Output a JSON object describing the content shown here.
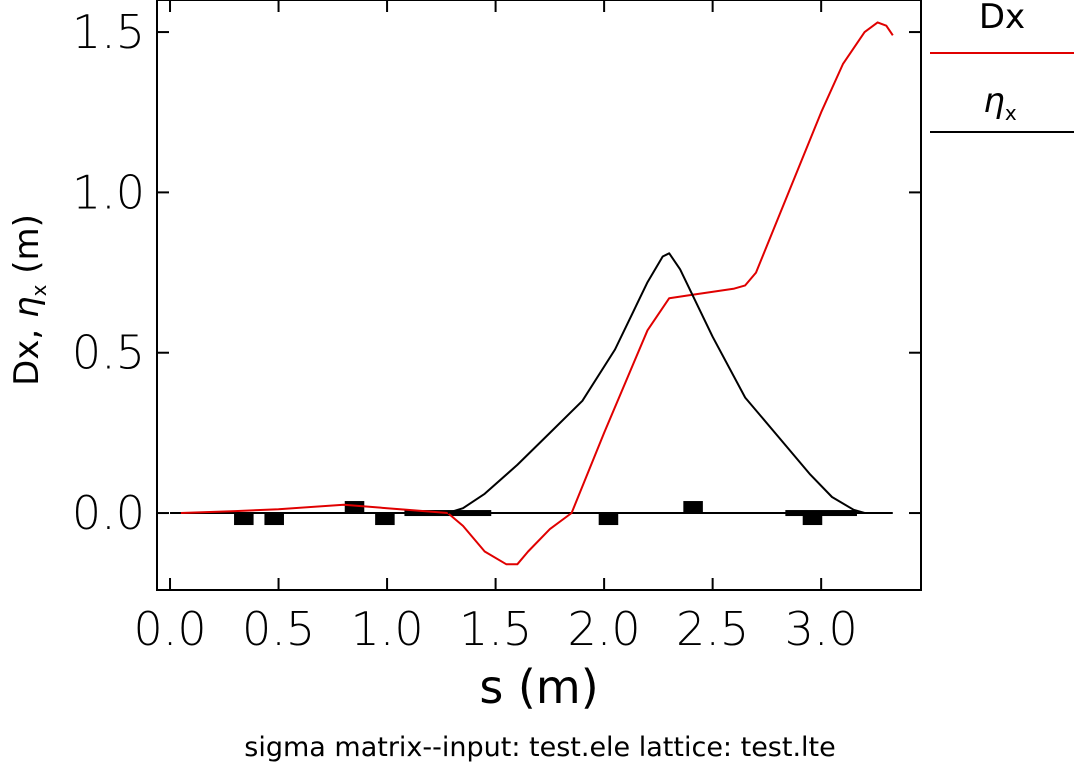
{
  "chart_data": {
    "type": "line",
    "xlabel": "s  (m)",
    "ylabel_prefix": "Dx,  ",
    "ylabel_eta": "η",
    "ylabel_sub": "x",
    "ylabel_suffix": "  (m)",
    "xlim": [
      -0.06,
      3.46
    ],
    "ylim": [
      -0.24,
      1.6
    ],
    "xticks": [
      0.0,
      0.5,
      1.0,
      1.5,
      2.0,
      2.5,
      3.0
    ],
    "xtick_labels": [
      "0.0",
      "0.5",
      "1.0",
      "1.5",
      "2.0",
      "2.5",
      "3.0"
    ],
    "yticks": [
      0.0,
      0.5,
      1.0,
      1.5
    ],
    "ytick_labels": [
      "0.0",
      "0.5",
      "1.0",
      "1.5"
    ],
    "legend_placement": "right",
    "series": [
      {
        "name": "Dx",
        "color": "#e00000",
        "x": [
          0.05,
          0.3,
          0.5,
          0.8,
          1.0,
          1.28,
          1.35,
          1.45,
          1.55,
          1.6,
          1.65,
          1.75,
          1.85,
          2.0,
          2.2,
          2.3,
          2.4,
          2.6,
          2.65,
          2.7,
          2.85,
          3.0,
          3.1,
          3.2,
          3.26,
          3.3,
          3.33
        ],
        "y": [
          0.0,
          0.006,
          0.012,
          0.026,
          0.015,
          0.0,
          -0.04,
          -0.12,
          -0.16,
          -0.16,
          -0.12,
          -0.05,
          0.0,
          0.25,
          0.57,
          0.67,
          0.68,
          0.7,
          0.71,
          0.75,
          1.0,
          1.25,
          1.4,
          1.5,
          1.53,
          1.52,
          1.49
        ]
      },
      {
        "name": "η",
        "name_sub": "x",
        "color": "#000000",
        "x": [
          1.28,
          1.35,
          1.45,
          1.6,
          1.75,
          1.9,
          2.05,
          2.2,
          2.27,
          2.3,
          2.35,
          2.5,
          2.65,
          2.8,
          2.95,
          3.05,
          3.15,
          3.2,
          3.3
        ],
        "y": [
          0.0,
          0.015,
          0.06,
          0.15,
          0.25,
          0.35,
          0.51,
          0.72,
          0.8,
          0.81,
          0.76,
          0.55,
          0.36,
          0.24,
          0.12,
          0.05,
          0.01,
          0.0,
          0.0
        ]
      }
    ],
    "elements": [
      {
        "x": 0.42,
        "w": 0.08,
        "side": "below"
      },
      {
        "x": 0.63,
        "w": 0.08,
        "side": "below"
      },
      {
        "x": 1.21,
        "w": 0.08,
        "side": "above"
      },
      {
        "x": 1.42,
        "w": 0.08,
        "side": "below"
      },
      {
        "x": 1.37,
        "w": 0.45,
        "side": "flat"
      },
      {
        "x": 2.74,
        "w": 0.08,
        "side": "below"
      },
      {
        "x": 3.39,
        "w": 0.08,
        "side": "above"
      },
      {
        "x": 4.72,
        "w": 0.08,
        "side": "below"
      },
      {
        "x": 5.5,
        "w": 0.6,
        "side": "flat"
      }
    ]
  },
  "footer": {
    "label": "sigma  matrix--input:  test.ele    lattice:  test.lte"
  }
}
